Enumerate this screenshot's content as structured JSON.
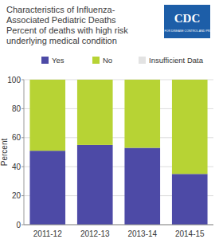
{
  "chart_data": {
    "type": "bar",
    "title": "Characteristics of Influenza-Associated Pediatric Deaths",
    "subtitle": "Percent of deaths with high risk underlying medical condition",
    "logo": {
      "text": "CDC",
      "subtext": "CENTERS FOR DISEASE CONTROL AND PREVENTION"
    },
    "y_label": "Percent",
    "categories": [
      "2011-12",
      "2012-13",
      "2013-14",
      "2014-15"
    ],
    "series": [
      {
        "name": "Yes",
        "color": "#4d4aa6",
        "values": [
          51,
          55,
          53,
          35
        ]
      },
      {
        "name": "No",
        "color": "#b7d334",
        "values": [
          49,
          45,
          47,
          65
        ]
      },
      {
        "name": "Insufficient Data",
        "color": "#e3e3e3",
        "values": [
          0,
          0,
          0,
          0
        ]
      }
    ],
    "ylim": [
      0,
      100
    ],
    "yticks": [
      0,
      20,
      40,
      60,
      80,
      100
    ],
    "stacked": true,
    "grid": true,
    "legend": "top"
  }
}
